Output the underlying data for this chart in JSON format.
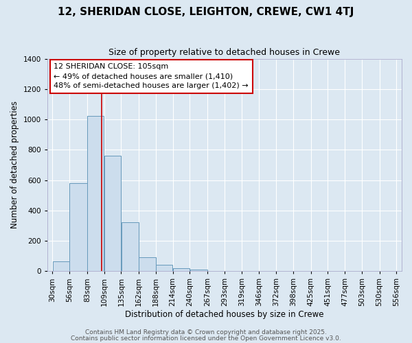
{
  "title": "12, SHERIDAN CLOSE, LEIGHTON, CREWE, CW1 4TJ",
  "subtitle": "Size of property relative to detached houses in Crewe",
  "xlabel": "Distribution of detached houses by size in Crewe",
  "ylabel": "Number of detached properties",
  "bar_color": "#ccdded",
  "bar_edge_color": "#6699bb",
  "background_color": "#dce8f2",
  "fig_background_color": "#dce8f2",
  "grid_color": "#ffffff",
  "vline_x": 105,
  "vline_color": "#cc0000",
  "bin_edges": [
    30,
    56,
    83,
    109,
    135,
    162,
    188,
    214,
    240,
    267,
    293,
    319,
    346,
    372,
    398,
    425,
    451,
    477,
    503,
    530,
    556
  ],
  "bin_labels": [
    "30sqm",
    "56sqm",
    "83sqm",
    "109sqm",
    "135sqm",
    "162sqm",
    "188sqm",
    "214sqm",
    "240sqm",
    "267sqm",
    "293sqm",
    "319sqm",
    "346sqm",
    "372sqm",
    "398sqm",
    "425sqm",
    "451sqm",
    "477sqm",
    "503sqm",
    "530sqm",
    "556sqm"
  ],
  "bar_heights": [
    65,
    580,
    1025,
    760,
    320,
    90,
    40,
    20,
    10,
    0,
    0,
    0,
    0,
    0,
    0,
    0,
    0,
    0,
    0,
    0
  ],
  "ylim": [
    0,
    1400
  ],
  "yticks": [
    0,
    200,
    400,
    600,
    800,
    1000,
    1200,
    1400
  ],
  "annotation_title": "12 SHERIDAN CLOSE: 105sqm",
  "annotation_line1": "← 49% of detached houses are smaller (1,410)",
  "annotation_line2": "48% of semi-detached houses are larger (1,402) →",
  "annotation_box_color": "#ffffff",
  "annotation_box_edge": "#cc0000",
  "footer1": "Contains HM Land Registry data © Crown copyright and database right 2025.",
  "footer2": "Contains public sector information licensed under the Open Government Licence v3.0.",
  "title_fontsize": 11,
  "subtitle_fontsize": 9,
  "axis_label_fontsize": 8.5,
  "tick_fontsize": 7.5,
  "annotation_fontsize": 8,
  "footer_fontsize": 6.5
}
